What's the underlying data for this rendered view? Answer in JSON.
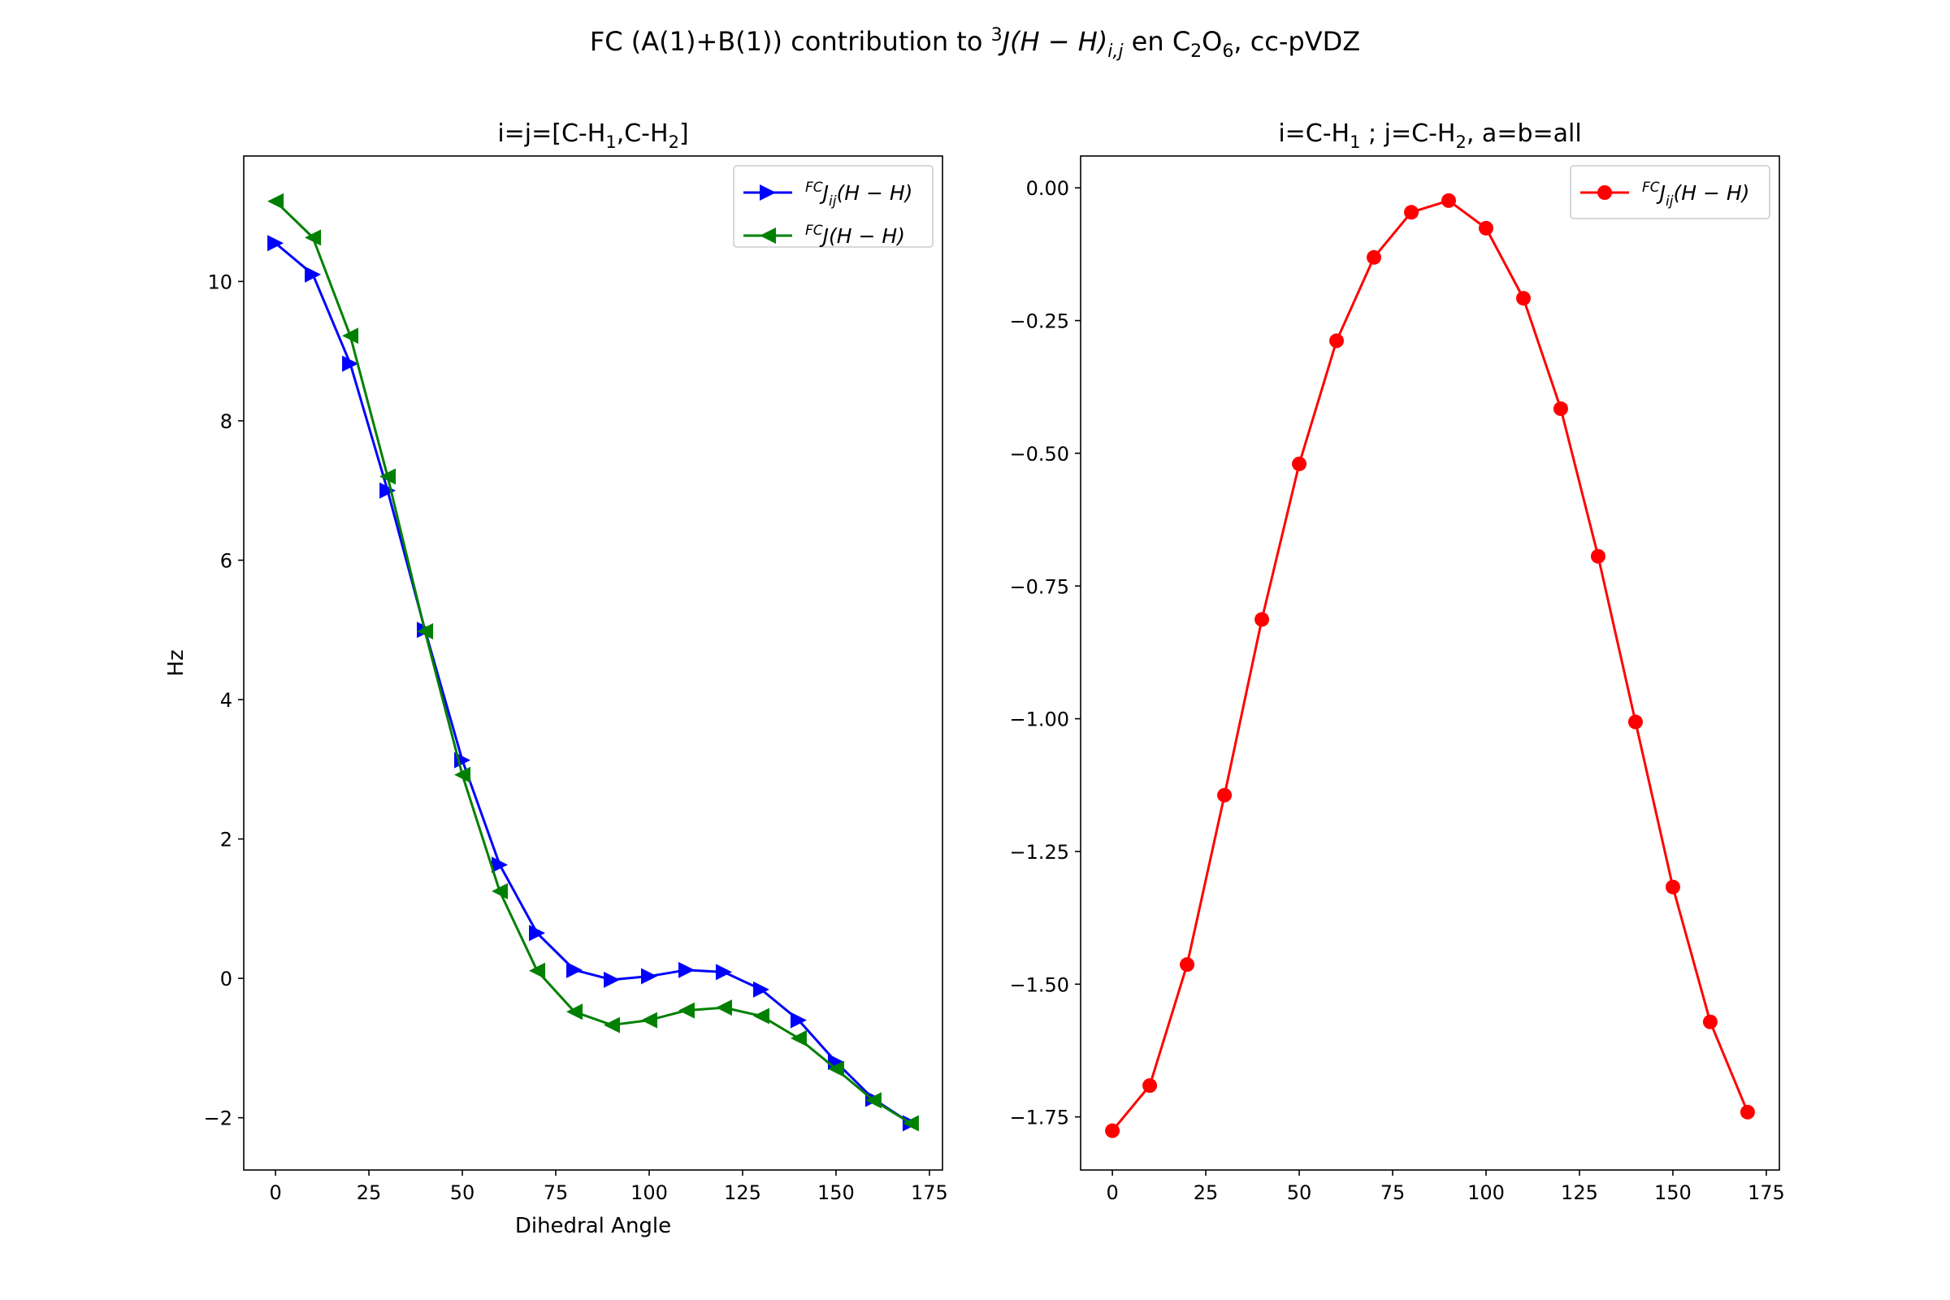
{
  "figure": {
    "suptitle_prefix": "FC (A(1)+B(1)) contribution to ",
    "suptitle_sup": "3",
    "suptitle_J": "J(H − H)",
    "suptitle_sub": "i,j",
    "suptitle_mid": " en C",
    "suptitle_c_sub": "2",
    "suptitle_o": "O",
    "suptitle_o_sub": "6",
    "suptitle_tail": ", cc-pVDZ"
  },
  "chart_data": [
    {
      "type": "line",
      "title_parts": [
        "i=j=[C-H",
        "1",
        ",C-H",
        "2",
        "]"
      ],
      "xlabel": "Dihedral Angle",
      "ylabel": "Hz",
      "xlim": [
        -8.5,
        178.5
      ],
      "ylim": [
        -2.75,
        11.8
      ],
      "xticks": [
        0,
        25,
        50,
        75,
        100,
        125,
        150,
        175
      ],
      "yticks": [
        -2,
        0,
        2,
        4,
        6,
        8,
        10
      ],
      "legend_position": "upper right",
      "x": [
        0,
        10,
        20,
        30,
        40,
        50,
        60,
        70,
        80,
        90,
        100,
        110,
        120,
        130,
        140,
        150,
        160,
        170
      ],
      "series": [
        {
          "name": "FCJij(H−H)",
          "legend_sup": "FC",
          "legend_J": "J",
          "legend_sub": "ij",
          "legend_tail": "(H − H)",
          "color": "#0000ff",
          "marker": "triangle-right",
          "values": [
            10.55,
            10.1,
            8.82,
            7.0,
            5.0,
            3.13,
            1.63,
            0.65,
            0.12,
            -0.02,
            0.03,
            0.12,
            0.09,
            -0.16,
            -0.6,
            -1.2,
            -1.73,
            -2.08
          ]
        },
        {
          "name": "FCJ(H−H)",
          "legend_sup": "FC",
          "legend_J": "J",
          "legend_sub": "",
          "legend_tail": "(H − H)",
          "color": "#008000",
          "marker": "triangle-left",
          "values": [
            11.15,
            10.63,
            9.22,
            7.2,
            4.98,
            2.92,
            1.25,
            0.11,
            -0.48,
            -0.67,
            -0.6,
            -0.46,
            -0.42,
            -0.54,
            -0.86,
            -1.3,
            -1.75,
            -2.08
          ]
        }
      ]
    },
    {
      "type": "line",
      "title_parts": [
        "i=C-H",
        "1",
        "  ;   j=C-H",
        "2",
        ",  a=b=all"
      ],
      "xlabel": "",
      "ylabel": "",
      "xlim": [
        -8.5,
        178.5
      ],
      "ylim": [
        -1.85,
        0.06
      ],
      "xticks": [
        0,
        25,
        50,
        75,
        100,
        125,
        150,
        175
      ],
      "yticks": [
        0.0,
        -0.25,
        -0.5,
        -0.75,
        -1.0,
        -1.25,
        -1.5,
        -1.75
      ],
      "ytick_labels": [
        "0.00",
        "−0.25",
        "−0.50",
        "−0.75",
        "−1.00",
        "−1.25",
        "−1.50",
        "−1.75"
      ],
      "legend_position": "upper right",
      "x": [
        0,
        10,
        20,
        30,
        40,
        50,
        60,
        70,
        80,
        90,
        100,
        110,
        120,
        130,
        140,
        150,
        160,
        170
      ],
      "series": [
        {
          "name": "FCJij(H−H)",
          "legend_sup": "FC",
          "legend_J": "J",
          "legend_sub": "ij",
          "legend_tail": "(H − H)",
          "color": "#ff0000",
          "marker": "circle",
          "values": [
            -1.776,
            -1.691,
            -1.463,
            -1.144,
            -0.813,
            -0.52,
            -0.288,
            -0.131,
            -0.046,
            -0.024,
            -0.076,
            -0.208,
            -0.416,
            -0.694,
            -1.006,
            -1.317,
            -1.571,
            -1.741
          ]
        }
      ]
    }
  ]
}
